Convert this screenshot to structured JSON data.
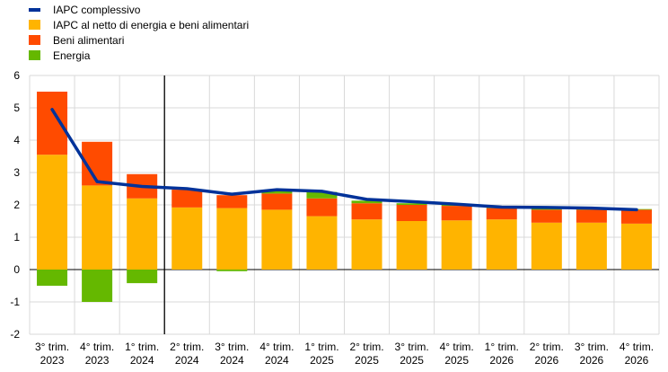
{
  "chart_data": {
    "type": "bar",
    "stacked": true,
    "categories": [
      [
        "3° trim.",
        "2023"
      ],
      [
        "4° trim.",
        "2023"
      ],
      [
        "1° trim.",
        "2024"
      ],
      [
        "2° trim.",
        "2024"
      ],
      [
        "3° trim.",
        "2024"
      ],
      [
        "4° trim.",
        "2024"
      ],
      [
        "1° trim.",
        "2025"
      ],
      [
        "2° trim.",
        "2025"
      ],
      [
        "3° trim.",
        "2025"
      ],
      [
        "4° trim.",
        "2025"
      ],
      [
        "1° trim.",
        "2026"
      ],
      [
        "2° trim.",
        "2026"
      ],
      [
        "3° trim.",
        "2026"
      ],
      [
        "4° trim.",
        "2026"
      ]
    ],
    "series": [
      {
        "name": "IAPC al netto di energia e beni alimentari",
        "color": "#ffb400",
        "values": [
          3.55,
          2.6,
          2.2,
          1.92,
          1.9,
          1.85,
          1.65,
          1.55,
          1.5,
          1.52,
          1.55,
          1.45,
          1.45,
          1.42
        ]
      },
      {
        "name": "Beni alimentari",
        "color": "#ff4b00",
        "values": [
          1.95,
          1.35,
          0.75,
          0.55,
          0.4,
          0.5,
          0.55,
          0.5,
          0.5,
          0.45,
          0.35,
          0.4,
          0.4,
          0.43
        ]
      },
      {
        "name": "Energia",
        "color": "#65b800",
        "values": [
          -0.5,
          -1.0,
          -0.42,
          0.0,
          -0.05,
          0.08,
          0.2,
          0.08,
          0.05,
          0.03,
          0.03,
          0.03,
          0.03,
          0.02
        ]
      }
    ],
    "line": {
      "name": "IAPC complessivo",
      "color": "#003299",
      "values": [
        4.95,
        2.72,
        2.57,
        2.5,
        2.33,
        2.47,
        2.42,
        2.17,
        2.1,
        2.02,
        1.93,
        1.92,
        1.9,
        1.85
      ]
    },
    "ylim": [
      -2,
      6
    ],
    "yticks": [
      "6",
      "5",
      "4",
      "3",
      "2",
      "1",
      "0",
      "-1",
      "-2"
    ],
    "ytick_values": [
      6,
      5,
      4,
      3,
      2,
      1,
      0,
      -1,
      -2
    ],
    "grid": true,
    "divider_after_index": 2,
    "legend_position": "top-left"
  }
}
